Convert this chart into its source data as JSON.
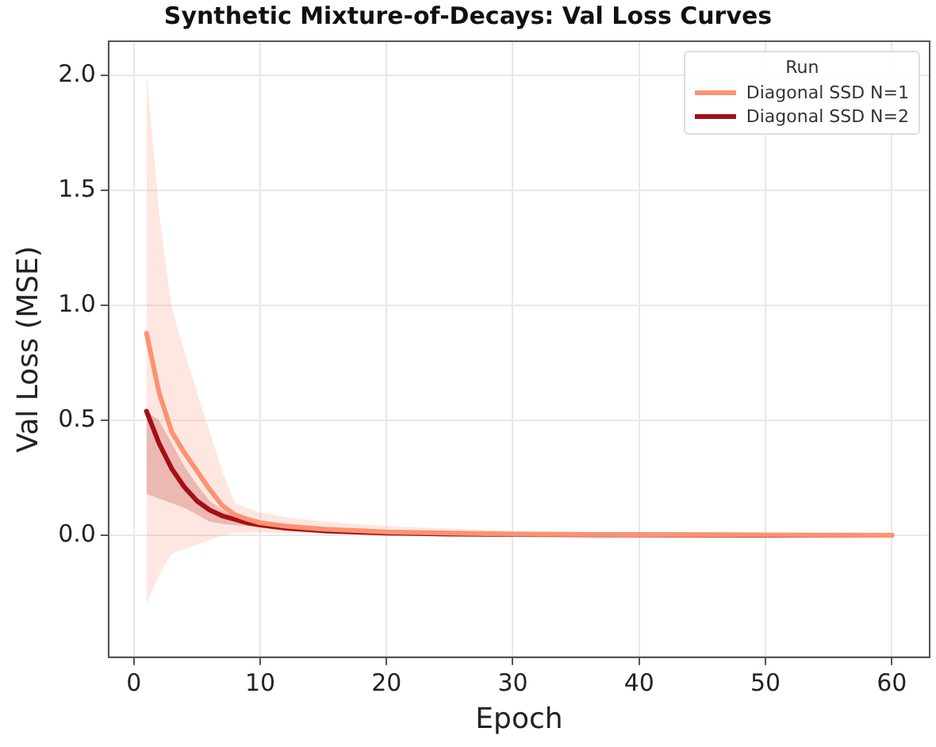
{
  "chart_data": {
    "type": "line",
    "title": "Synthetic Mixture-of-Decays: Val Loss Curves",
    "xlabel": "Epoch",
    "ylabel": "Val Loss (MSE)",
    "legend_title": "Run",
    "x": [
      1,
      2,
      3,
      4,
      5,
      6,
      7,
      8,
      9,
      10,
      12,
      15,
      20,
      25,
      30,
      40,
      50,
      60
    ],
    "series": [
      {
        "name": "Diagonal SSD N=1",
        "color": "#fc9272",
        "values": [
          0.88,
          0.62,
          0.45,
          0.36,
          0.28,
          0.2,
          0.13,
          0.09,
          0.07,
          0.055,
          0.04,
          0.027,
          0.015,
          0.01,
          0.006,
          0.003,
          0.002,
          0.001
        ],
        "lower": [
          -0.3,
          -0.17,
          -0.08,
          -0.06,
          -0.04,
          -0.02,
          0,
          0.01,
          0.012,
          0.012,
          0.01,
          0.008,
          0.005,
          0.003,
          0.002,
          0.001,
          0.001,
          0
        ],
        "upper": [
          2.02,
          1.4,
          0.99,
          0.8,
          0.62,
          0.45,
          0.28,
          0.14,
          0.12,
          0.1,
          0.08,
          0.06,
          0.04,
          0.03,
          0.02,
          0.01,
          0.006,
          0.003
        ]
      },
      {
        "name": "Diagonal SSD N=2",
        "color": "#a50f15",
        "values": [
          0.54,
          0.4,
          0.29,
          0.21,
          0.15,
          0.11,
          0.085,
          0.07,
          0.055,
          0.045,
          0.032,
          0.02,
          0.01,
          0.006,
          0.004,
          0.002,
          0.001,
          0.001
        ],
        "lower": [
          0.18,
          0.16,
          0.14,
          0.12,
          0.09,
          0.06,
          0.05,
          0.045,
          0.04,
          0.035,
          0.025,
          0.015,
          0.006,
          0.004,
          0.002,
          0.001,
          0.001,
          0
        ],
        "upper": [
          0.54,
          0.5,
          0.4,
          0.3,
          0.22,
          0.15,
          0.11,
          0.09,
          0.075,
          0.06,
          0.045,
          0.03,
          0.015,
          0.01,
          0.006,
          0.003,
          0.002,
          0.001
        ]
      }
    ],
    "xlim": [
      -2,
      63
    ],
    "xticks": [
      0,
      10,
      20,
      30,
      40,
      50,
      60
    ],
    "ylim": [
      -0.53,
      2.15
    ],
    "yticks": [
      {
        "value": 0,
        "label": "0.0"
      },
      {
        "value": 0.5,
        "label": "0.5"
      },
      {
        "value": 1,
        "label": "1.0"
      },
      {
        "value": 1.5,
        "label": "1.5"
      },
      {
        "value": 2,
        "label": "2.0"
      }
    ],
    "grid": true,
    "legend": "top right",
    "marker": "none",
    "line_style": "solid"
  }
}
